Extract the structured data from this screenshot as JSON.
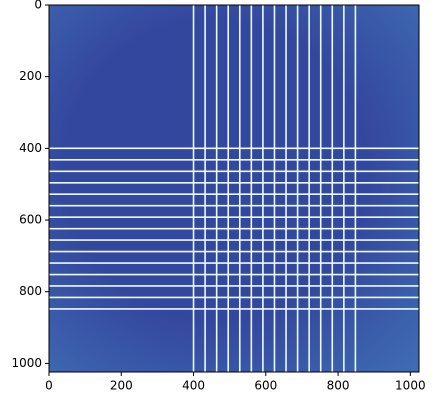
{
  "chart_data": {
    "type": "heatmap",
    "xlim": [
      0,
      1024
    ],
    "ylim": [
      1024,
      0
    ],
    "xticks": [
      0,
      200,
      400,
      600,
      800,
      1000
    ],
    "yticks": [
      0,
      200,
      400,
      600,
      800,
      1000
    ],
    "background_color": "#34479e",
    "edge_color": "#3f6bb3",
    "line_color": "#e8fbff",
    "bright_columns": [
      400,
      432,
      464,
      496,
      528,
      560,
      592,
      624,
      656,
      688,
      720,
      752,
      784,
      816,
      848
    ],
    "bright_rows": [
      400,
      432,
      464,
      496,
      528,
      560,
      592,
      624,
      656,
      688,
      720,
      752,
      784,
      816,
      848
    ]
  }
}
